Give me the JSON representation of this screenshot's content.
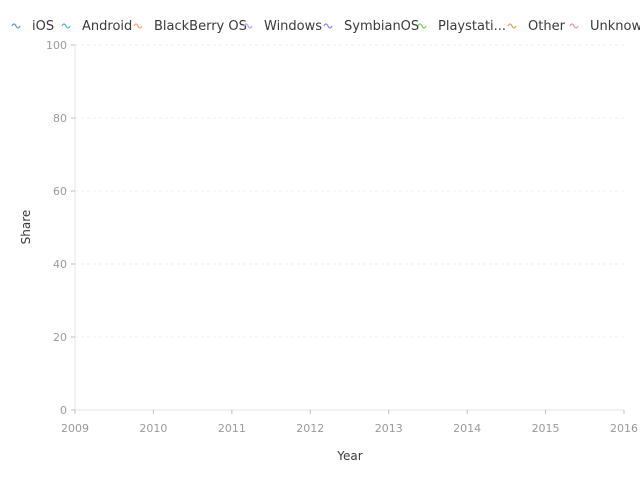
{
  "chart_data": {
    "type": "line",
    "title": "",
    "xlabel": "Year",
    "ylabel": "Share",
    "xlim": [
      2009,
      2016
    ],
    "ylim": [
      0,
      100
    ],
    "x_ticks": [
      "2009",
      "2010",
      "2011",
      "2012",
      "2013",
      "2014",
      "2015",
      "2016"
    ],
    "y_ticks": [
      "0",
      "20",
      "40",
      "60",
      "80",
      "100"
    ],
    "grid": true,
    "legend_position": "top",
    "series": [
      {
        "name": "iOS",
        "color": "#5b9bd5",
        "values": []
      },
      {
        "name": "Android",
        "color": "#4fb6d6",
        "values": []
      },
      {
        "name": "BlackBerry OS",
        "color": "#f0a37c",
        "values": []
      },
      {
        "name": "Windows",
        "color": "#c79cf0",
        "values": []
      },
      {
        "name": "SymbianOS",
        "color": "#8a86f0",
        "values": []
      },
      {
        "name": "Playstati...",
        "color": "#7ccf5f",
        "values": []
      },
      {
        "name": "Other",
        "color": "#e4a15d",
        "values": []
      },
      {
        "name": "Unknown",
        "color": "#f38fae",
        "values": []
      }
    ]
  }
}
